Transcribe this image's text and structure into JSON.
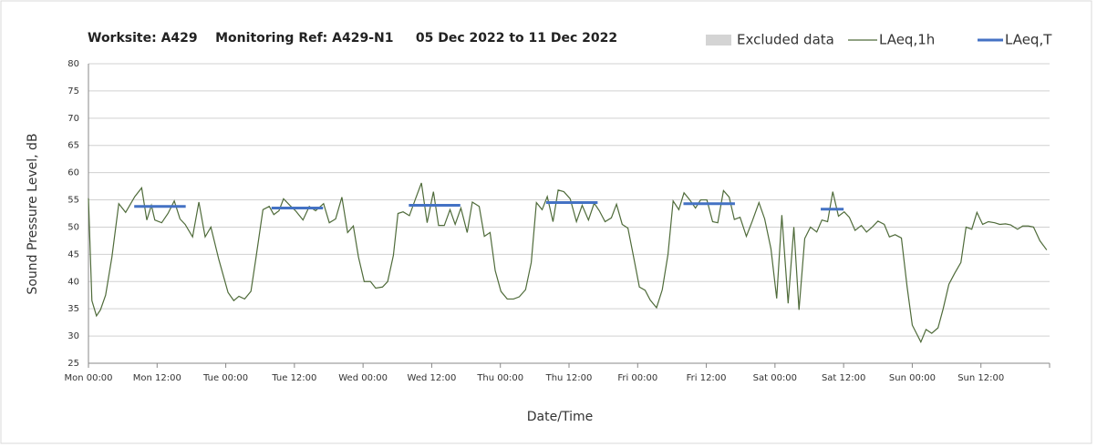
{
  "chart_data": {
    "type": "line",
    "title": "Worksite: A429    Monitoring Ref: A429-N1     05 Dec 2022 to 11 Dec 2022",
    "x_label": "Date/Time",
    "y_label": "Sound Pressure Level, dB",
    "xlim": [
      0,
      168
    ],
    "ylim": [
      25,
      80
    ],
    "xticks": [
      {
        "value": 0,
        "label": "Mon 00:00"
      },
      {
        "value": 12,
        "label": "Mon 12:00"
      },
      {
        "value": 24,
        "label": "Tue 00:00"
      },
      {
        "value": 36,
        "label": "Tue 12:00"
      },
      {
        "value": 48,
        "label": "Wed 00:00"
      },
      {
        "value": 60,
        "label": "Wed 12:00"
      },
      {
        "value": 72,
        "label": "Thu 00:00"
      },
      {
        "value": 84,
        "label": "Thu 12:00"
      },
      {
        "value": 96,
        "label": "Fri 00:00"
      },
      {
        "value": 108,
        "label": "Fri 12:00"
      },
      {
        "value": 120,
        "label": "Sat 00:00"
      },
      {
        "value": 132,
        "label": "Sat 12:00"
      },
      {
        "value": 144,
        "label": "Sun 00:00"
      },
      {
        "value": 156,
        "label": "Sun 12:00"
      }
    ],
    "yticks": [
      25,
      30,
      35,
      40,
      45,
      50,
      55,
      60,
      65,
      70,
      75,
      80
    ],
    "grid": true,
    "series": [
      {
        "name": "Excluded data",
        "color": "#d4d4d4",
        "x": [],
        "values": []
      },
      {
        "name": "LAeq,1h",
        "color": "#4f6b3a",
        "x": [
          0,
          0.6,
          1.4,
          2.1,
          3.0,
          4.1,
          5.3,
          6.5,
          8.1,
          9.3,
          10.2,
          11.0,
          11.6,
          12.8,
          13.9,
          15.0,
          16.0,
          16.9,
          18.2,
          19.3,
          20.4,
          21.4,
          22.8,
          24.4,
          25.4,
          26.3,
          27.3,
          28.4,
          29.3,
          30.5,
          31.6,
          32.4,
          33.3,
          34.1,
          35.2,
          36.2,
          37.5,
          38.6,
          39.7,
          41.1,
          42.1,
          43.2,
          44.3,
          45.3,
          46.3,
          47.2,
          48.2,
          49.3,
          50.2,
          51.4,
          52.3,
          53.3,
          54.1,
          55.0,
          56.1,
          57.1,
          58.2,
          59.2,
          60.3,
          61.2,
          62.2,
          63.2,
          64.1,
          65.1,
          66.2,
          67.1,
          68.3,
          69.2,
          70.2,
          71.1,
          72.1,
          73.2,
          74.3,
          75.3,
          76.4,
          77.4,
          78.3,
          79.3,
          80.2,
          81.2,
          82.1,
          83.1,
          84.2,
          85.3,
          86.3,
          87.4,
          88.4,
          89.3,
          90.3,
          91.4,
          92.3,
          93.3,
          94.3,
          95.2,
          96.3,
          97.3,
          98.2,
          99.3,
          100.3,
          101.3,
          102.2,
          103.2,
          104.1,
          105.1,
          106.1,
          107.0,
          108.1,
          109.1,
          110.0,
          111.0,
          112.0,
          112.9,
          113.9,
          115.0,
          116.0,
          117.2,
          118.2,
          119.3,
          120.3,
          121.2,
          122.3,
          123.3,
          124.2,
          125.2,
          126.2,
          127.3,
          128.2,
          129.2,
          130.1,
          131.1,
          132.1,
          133.0,
          134.0,
          135.1,
          136.0,
          137.0,
          138.0,
          139.1,
          140.0,
          141.0,
          142.1,
          143.1,
          144.0,
          145.5,
          146.4,
          147.4,
          148.5,
          149.4,
          150.4,
          151.4,
          152.5,
          153.4,
          154.4,
          155.3,
          156.3,
          157.3,
          158.4,
          159.3,
          160.3,
          161.2,
          162.4,
          163.3,
          164.3,
          165.2,
          166.3,
          167.5
        ],
        "values": [
          55.3,
          36.5,
          33.7,
          34.8,
          37.5,
          44.5,
          54.3,
          52.7,
          55.6,
          57.2,
          51.3,
          54.0,
          51.3,
          50.8,
          52.5,
          54.8,
          51.5,
          50.5,
          48.2,
          54.6,
          48.2,
          50.0,
          44.0,
          38.0,
          36.5,
          37.3,
          36.8,
          38.2,
          44.5,
          53.2,
          53.8,
          52.3,
          53.0,
          55.2,
          54.0,
          53.0,
          51.3,
          53.8,
          53.0,
          54.3,
          50.8,
          51.5,
          55.5,
          49.0,
          50.2,
          44.5,
          40.0,
          40.0,
          38.8,
          39.0,
          40.0,
          44.8,
          52.5,
          52.8,
          52.1,
          55.0,
          58.1,
          50.8,
          56.5,
          50.3,
          50.3,
          53.2,
          50.5,
          53.5,
          49.0,
          54.6,
          53.8,
          48.3,
          49.0,
          42.0,
          38.2,
          36.8,
          36.8,
          37.2,
          38.5,
          43.5,
          54.5,
          53.2,
          55.6,
          51.0,
          56.8,
          56.5,
          55.2,
          51.0,
          54.0,
          51.3,
          54.4,
          53.0,
          51.0,
          51.7,
          54.2,
          50.5,
          49.8,
          45.0,
          39.0,
          38.4,
          36.6,
          35.2,
          38.5,
          45.0,
          54.8,
          53.2,
          56.3,
          55.0,
          53.5,
          55.0,
          55.0,
          51.0,
          50.8,
          56.7,
          55.5,
          51.4,
          51.8,
          48.3,
          51.0,
          54.5,
          51.5,
          46.0,
          36.9,
          52.2,
          36.0,
          50.0,
          34.8,
          47.9,
          50.0,
          49.1,
          51.3,
          51.0,
          56.5,
          52.0,
          52.8,
          51.8,
          49.4,
          50.3,
          49.1,
          50.0,
          51.1,
          50.5,
          48.2,
          48.6,
          48.0,
          39.0,
          32.0,
          28.9,
          31.2,
          30.5,
          31.5,
          35.0,
          39.5,
          41.5,
          43.5,
          50.0,
          49.6,
          52.7,
          50.5,
          51.0,
          50.8,
          50.5,
          50.6,
          50.4,
          49.6,
          50.2,
          50.2,
          50.0,
          47.5,
          45.8
        ]
      },
      {
        "name": "LAeq,T",
        "color": "#4472c4",
        "segments": [
          {
            "x": [
              8,
              17
            ],
            "value": 53.8
          },
          {
            "x": [
              32,
              41
            ],
            "value": 53.5
          },
          {
            "x": [
              56,
              65
            ],
            "value": 54.0
          },
          {
            "x": [
              80,
              89
            ],
            "value": 54.5
          },
          {
            "x": [
              104,
              113
            ],
            "value": 54.3
          },
          {
            "x": [
              128,
              132
            ],
            "value": 53.3
          }
        ]
      }
    ]
  }
}
